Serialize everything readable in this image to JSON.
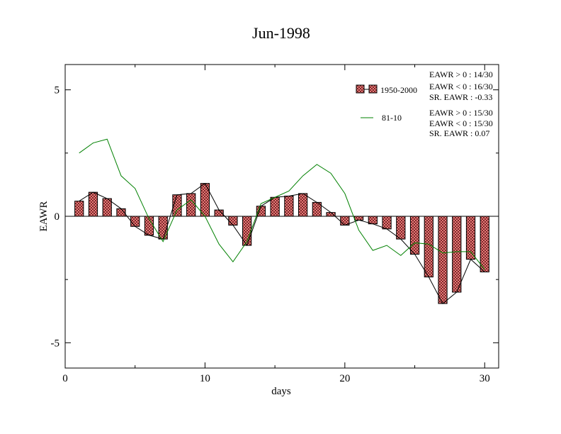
{
  "chart_data": {
    "type": "bar",
    "title": "Jun-1998",
    "xlabel": "days",
    "ylabel": "EAWR",
    "xlim": [
      0,
      31
    ],
    "ylim": [
      -6,
      6
    ],
    "x_ticks": [
      0,
      10,
      20,
      30
    ],
    "y_ticks": [
      5,
      0,
      -5
    ],
    "x_tick_labels": [
      "0",
      "10",
      "20",
      "30"
    ],
    "y_tick_labels": [
      "5",
      "0",
      "-5"
    ],
    "grid": false,
    "legend_position": "top-right",
    "series": [
      {
        "name": "1950-2000",
        "style": "bar+line",
        "bar_color": "#e87878",
        "line_color": "#000000",
        "x": [
          1,
          2,
          3,
          4,
          5,
          6,
          7,
          8,
          9,
          10,
          11,
          12,
          13,
          14,
          15,
          16,
          17,
          18,
          19,
          20,
          21,
          22,
          23,
          24,
          25,
          26,
          27,
          28,
          29,
          30
        ],
        "values": [
          0.6,
          0.95,
          0.7,
          0.3,
          -0.4,
          -0.75,
          -0.9,
          0.85,
          0.9,
          1.3,
          0.25,
          -0.35,
          -1.15,
          0.4,
          0.75,
          0.8,
          0.9,
          0.55,
          0.15,
          -0.35,
          -0.15,
          -0.3,
          -0.5,
          -0.9,
          -1.5,
          -2.4,
          -3.45,
          -3.0,
          -1.7,
          -2.2
        ]
      },
      {
        "name": "81-10",
        "style": "line",
        "line_color": "#008000",
        "x": [
          1,
          2,
          3,
          4,
          5,
          6,
          7,
          8,
          9,
          10,
          11,
          12,
          13,
          14,
          15,
          16,
          17,
          18,
          19,
          20,
          21,
          22,
          23,
          24,
          25,
          26,
          27,
          28,
          29,
          30
        ],
        "values": [
          2.5,
          2.9,
          3.05,
          1.6,
          1.1,
          -0.1,
          -1.0,
          0.25,
          0.65,
          0.0,
          -1.1,
          -1.8,
          -1.0,
          0.5,
          0.75,
          1.0,
          1.6,
          2.05,
          1.7,
          0.9,
          -0.55,
          -1.35,
          -1.15,
          -1.55,
          -1.05,
          -1.1,
          -1.45,
          -1.4,
          -1.4,
          -2.1
        ]
      }
    ],
    "legend": [
      {
        "label": "1950-2000",
        "stats": [
          "EAWR > 0 : 14/30",
          "EAWR < 0 : 16/30",
          "SR. EAWR : -0.33"
        ]
      },
      {
        "label": "81-10",
        "stats": [
          "EAWR > 0 : 15/30",
          "EAWR < 0 : 15/30",
          "SR. EAWR :  0.07"
        ]
      }
    ]
  }
}
